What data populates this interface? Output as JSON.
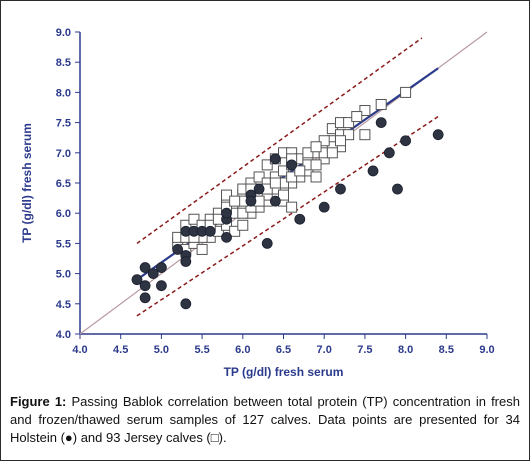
{
  "chart_data": {
    "type": "scatter",
    "title": "",
    "xlabel": "TP (g/dl) fresh serum",
    "ylabel": "TP (g/dl) fresh serum",
    "xlim": [
      4.0,
      9.0
    ],
    "ylim": [
      4.0,
      9.0
    ],
    "x_ticks": [
      "4.0",
      "4.5",
      "5.0",
      "5.5",
      "6.0",
      "6.5",
      "7.0",
      "7.5",
      "8.0",
      "8.5",
      "9.0"
    ],
    "y_ticks": [
      "4.0",
      "4.5",
      "5.0",
      "5.5",
      "6.0",
      "6.5",
      "7.0",
      "7.5",
      "8.0",
      "8.5",
      "9.0"
    ],
    "grid": false,
    "series": [
      {
        "name": "Holstein",
        "marker": "filled-circle",
        "color": "#2e3442",
        "points": [
          [
            4.7,
            4.9
          ],
          [
            4.8,
            5.1
          ],
          [
            4.8,
            4.8
          ],
          [
            4.8,
            4.6
          ],
          [
            4.9,
            5.0
          ],
          [
            5.0,
            5.1
          ],
          [
            5.0,
            4.8
          ],
          [
            5.2,
            5.4
          ],
          [
            5.3,
            5.7
          ],
          [
            5.3,
            5.3
          ],
          [
            5.3,
            5.2
          ],
          [
            5.3,
            4.5
          ],
          [
            5.4,
            5.7
          ],
          [
            5.5,
            5.7
          ],
          [
            5.8,
            5.9
          ],
          [
            5.8,
            6.0
          ],
          [
            5.8,
            5.6
          ],
          [
            6.1,
            6.3
          ],
          [
            6.2,
            6.4
          ],
          [
            6.3,
            5.5
          ],
          [
            6.4,
            6.9
          ],
          [
            6.4,
            6.2
          ],
          [
            6.6,
            6.8
          ],
          [
            6.7,
            5.9
          ],
          [
            7.0,
            6.1
          ],
          [
            7.2,
            6.4
          ],
          [
            7.6,
            6.7
          ],
          [
            7.7,
            7.5
          ],
          [
            7.8,
            7.0
          ],
          [
            7.9,
            6.4
          ],
          [
            8.0,
            7.2
          ],
          [
            8.4,
            7.3
          ],
          [
            6.1,
            6.2
          ],
          [
            5.6,
            5.7
          ]
        ]
      },
      {
        "name": "Jersey",
        "marker": "open-square",
        "color": "#555555",
        "points": [
          [
            5.2,
            5.5
          ],
          [
            5.2,
            5.6
          ],
          [
            5.3,
            5.8
          ],
          [
            5.3,
            5.4
          ],
          [
            5.4,
            5.9
          ],
          [
            5.4,
            5.5
          ],
          [
            5.5,
            5.8
          ],
          [
            5.5,
            5.4
          ],
          [
            5.6,
            5.9
          ],
          [
            5.6,
            5.6
          ],
          [
            5.7,
            6.0
          ],
          [
            5.7,
            5.7
          ],
          [
            5.8,
            6.2
          ],
          [
            5.8,
            5.8
          ],
          [
            5.8,
            6.3
          ],
          [
            5.9,
            6.1
          ],
          [
            5.9,
            5.7
          ],
          [
            6.0,
            6.3
          ],
          [
            6.0,
            6.1
          ],
          [
            6.0,
            5.8
          ],
          [
            6.0,
            6.4
          ],
          [
            6.1,
            6.2
          ],
          [
            6.1,
            6.5
          ],
          [
            6.1,
            6.0
          ],
          [
            6.2,
            6.4
          ],
          [
            6.2,
            6.1
          ],
          [
            6.2,
            6.6
          ],
          [
            6.3,
            6.5
          ],
          [
            6.3,
            6.2
          ],
          [
            6.3,
            6.8
          ],
          [
            6.4,
            6.6
          ],
          [
            6.4,
            6.3
          ],
          [
            6.4,
            6.9
          ],
          [
            6.5,
            6.7
          ],
          [
            6.5,
            7.0
          ],
          [
            6.5,
            6.4
          ],
          [
            6.5,
            6.2
          ],
          [
            6.6,
            6.8
          ],
          [
            6.6,
            6.5
          ],
          [
            6.6,
            6.1
          ],
          [
            6.6,
            7.0
          ],
          [
            6.7,
            6.9
          ],
          [
            6.7,
            6.6
          ],
          [
            6.8,
            6.9
          ],
          [
            6.8,
            6.7
          ],
          [
            6.9,
            7.0
          ],
          [
            6.9,
            6.6
          ],
          [
            7.0,
            7.1
          ],
          [
            7.0,
            6.9
          ],
          [
            7.1,
            7.2
          ],
          [
            7.1,
            7.4
          ],
          [
            7.2,
            7.5
          ],
          [
            7.2,
            7.3
          ],
          [
            7.2,
            7.1
          ],
          [
            7.3,
            7.5
          ],
          [
            7.3,
            7.3
          ],
          [
            7.5,
            7.3
          ],
          [
            7.5,
            7.7
          ],
          [
            7.7,
            7.8
          ],
          [
            8.0,
            8.0
          ],
          [
            5.6,
            5.8
          ],
          [
            5.9,
            6.0
          ],
          [
            6.0,
            6.0
          ],
          [
            6.2,
            6.3
          ],
          [
            6.3,
            6.3
          ],
          [
            6.4,
            6.4
          ],
          [
            6.5,
            6.5
          ],
          [
            6.6,
            6.6
          ],
          [
            6.8,
            6.8
          ],
          [
            6.9,
            6.8
          ],
          [
            7.0,
            7.0
          ],
          [
            7.1,
            7.1
          ],
          [
            7.2,
            7.2
          ],
          [
            5.5,
            5.6
          ],
          [
            5.7,
            5.9
          ],
          [
            5.8,
            6.1
          ],
          [
            6.1,
            6.1
          ],
          [
            6.2,
            6.2
          ],
          [
            6.3,
            6.4
          ],
          [
            6.4,
            6.5
          ],
          [
            6.7,
            6.7
          ],
          [
            6.8,
            7.0
          ],
          [
            7.0,
            7.2
          ],
          [
            7.4,
            7.6
          ],
          [
            5.3,
            5.6
          ],
          [
            5.4,
            5.6
          ],
          [
            6.5,
            6.3
          ],
          [
            6.9,
            7.1
          ],
          [
            7.1,
            7.0
          ],
          [
            6.0,
            6.2
          ],
          [
            5.9,
            6.2
          ],
          [
            6.1,
            6.4
          ],
          [
            6.6,
            6.9
          ]
        ]
      }
    ],
    "lines": [
      {
        "name": "identity",
        "style": "solid",
        "color": "#b89aa0",
        "from": [
          4.0,
          4.0
        ],
        "to": [
          9.0,
          9.0
        ]
      },
      {
        "name": "regression",
        "style": "solid",
        "color": "#2b3a8c",
        "from": [
          4.7,
          4.9
        ],
        "to": [
          8.4,
          8.4
        ]
      },
      {
        "name": "upper-bound",
        "style": "dashed",
        "color": "#8b1a1a",
        "from": [
          4.7,
          5.5
        ],
        "to": [
          8.2,
          8.9
        ]
      },
      {
        "name": "lower-bound",
        "style": "dashed",
        "color": "#8b1a1a",
        "from": [
          4.7,
          4.3
        ],
        "to": [
          8.4,
          7.6
        ]
      }
    ]
  },
  "caption": {
    "label": "Figure 1:",
    "text": "Passing Bablok correlation between total protein (TP) concentration in fresh and frozen/thawed serum samples of 127 calves. Data points are presented for 34 Holstein (●) and 93 Jersey calves (□)."
  }
}
